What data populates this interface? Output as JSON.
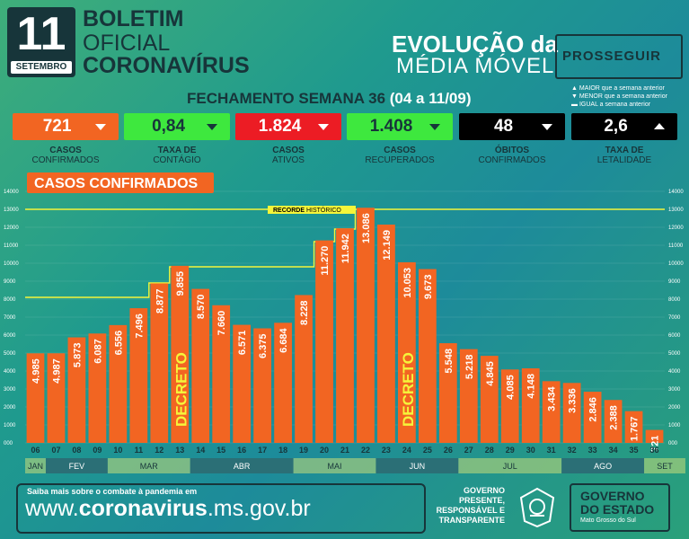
{
  "header": {
    "day": "11",
    "month": "SETEMBRO",
    "title_line1": "BOLETIM",
    "title_line2": "OFICIAL",
    "title_line3": "CORONAVÍRUS",
    "evolucao_line1": "EVOLUÇÃO da",
    "evolucao_line2": "MÉDIA MÓVEL",
    "prosseguir": "PROSSEGUIR",
    "fechamento": "FECHAMENTO SEMANA 36",
    "fechamento_range": "(04 a 11/09)",
    "legend": [
      "MAIOR que a semana anterior",
      "MENOR que a semana anterior",
      "IGUAL a semana anterior"
    ]
  },
  "indicators": [
    {
      "value": "721",
      "label1": "CASOS",
      "label2": "CONFIRMADOS",
      "trend": "down",
      "bg": "#f26522",
      "fg": "#ffffff"
    },
    {
      "value": "0,84",
      "label1": "TAXA DE",
      "label2": "CONTÁGIO",
      "trend": "down",
      "bg": "#3ee83e",
      "fg": "#17353a"
    },
    {
      "value": "1.824",
      "label1": "CASOS",
      "label2": "ATIVOS",
      "trend": "down",
      "bg": "#ec1c24",
      "fg": "#ffffff"
    },
    {
      "value": "1.408",
      "label1": "CASOS",
      "label2": "RECUPERADOS",
      "trend": "down",
      "bg": "#3ee83e",
      "fg": "#17353a"
    },
    {
      "value": "48",
      "label1": "ÓBITOS",
      "label2": "CONFIRMADOS",
      "trend": "down",
      "bg": "#000000",
      "fg": "#ffffff"
    },
    {
      "value": "2,6",
      "label1": "TAXA DE",
      "label2": "LETALIDADE",
      "trend": "up",
      "bg": "#000000",
      "fg": "#ffffff"
    }
  ],
  "chart_data": {
    "type": "bar",
    "title": "CASOS CONFIRMADOS",
    "categories": [
      "06",
      "07",
      "08",
      "09",
      "10",
      "11",
      "12",
      "13",
      "14",
      "15",
      "16",
      "17",
      "18",
      "19",
      "20",
      "21",
      "22",
      "23",
      "24",
      "25",
      "26",
      "27",
      "28",
      "29",
      "30",
      "31",
      "32",
      "33",
      "34",
      "35",
      "36"
    ],
    "values": [
      4985,
      4987,
      5873,
      6087,
      6556,
      7496,
      8877,
      9855,
      8570,
      7660,
      6571,
      6375,
      6684,
      8228,
      11270,
      11942,
      13086,
      12149,
      10053,
      9673,
      5548,
      5218,
      4845,
      4085,
      4148,
      3434,
      3336,
      2846,
      2388,
      1767,
      721
    ],
    "value_labels": [
      "4.985",
      "4.987",
      "5.873",
      "6.087",
      "6.556",
      "7.496",
      "8.877",
      "9.855",
      "8.570",
      "7.660",
      "6.571",
      "6.375",
      "6.684",
      "8.228",
      "11.270",
      "11.942",
      "13.086",
      "12.149",
      "10.053",
      "9.673",
      "5.548",
      "5.218",
      "4.845",
      "4.085",
      "4.148",
      "3.434",
      "3.336",
      "2.846",
      "2.388",
      "1.767",
      "721"
    ],
    "record_value": 13000,
    "record_label_a": "RECORDE",
    "record_label_b": " HISTÓRICO",
    "record_steps": [
      {
        "from": "06",
        "value": 8100
      },
      {
        "from": "12",
        "value": 8900
      },
      {
        "from": "13",
        "value": 9800
      },
      {
        "from": "20",
        "value": 11200
      },
      {
        "from": "21",
        "value": 11900
      },
      {
        "from": "22",
        "value": 13000
      }
    ],
    "decreto_label": "DECRETO",
    "decreto_at": [
      "13",
      "24"
    ],
    "ylim": [
      0,
      14000
    ],
    "yticks": [
      "000",
      "1000",
      "2000",
      "3000",
      "4000",
      "5000",
      "6000",
      "7000",
      "8000",
      "9000",
      "10000",
      "11000",
      "12000",
      "13000",
      "14000"
    ],
    "months": [
      {
        "name": "JAN",
        "start": -0.5,
        "end": 0.5
      },
      {
        "name": "FEV",
        "start": 0.5,
        "end": 3.5
      },
      {
        "name": "MAR",
        "start": 3.5,
        "end": 7.5
      },
      {
        "name": "ABR",
        "start": 7.5,
        "end": 12.5
      },
      {
        "name": "MAI",
        "start": 12.5,
        "end": 16.5
      },
      {
        "name": "JUN",
        "start": 16.5,
        "end": 20.5
      },
      {
        "name": "JUL",
        "start": 20.5,
        "end": 25.5
      },
      {
        "name": "AGO",
        "start": 25.5,
        "end": 29.5
      },
      {
        "name": "SET",
        "start": 29.5,
        "end": 31.5
      }
    ]
  },
  "footer": {
    "saiba": "Saiba mais sobre o combate à pandemia em",
    "site_a": "www.",
    "site_b": "coronavirus",
    "site_c": ".ms.gov.br",
    "gov_line1": "GOVERNO",
    "gov_line2": "PRESENTE,",
    "gov_line3": "RESPONSÁVEL E",
    "gov_line4": "TRANSPARENTE",
    "govbox_line1": "GOVERNO",
    "govbox_line2": "DO ESTADO",
    "govbox_line3": "Mato Grosso do Sul"
  },
  "colors": {
    "bar": "#f26522",
    "record": "#f5f53a",
    "dark": "#17353a",
    "decreto": "#f5f53a"
  }
}
